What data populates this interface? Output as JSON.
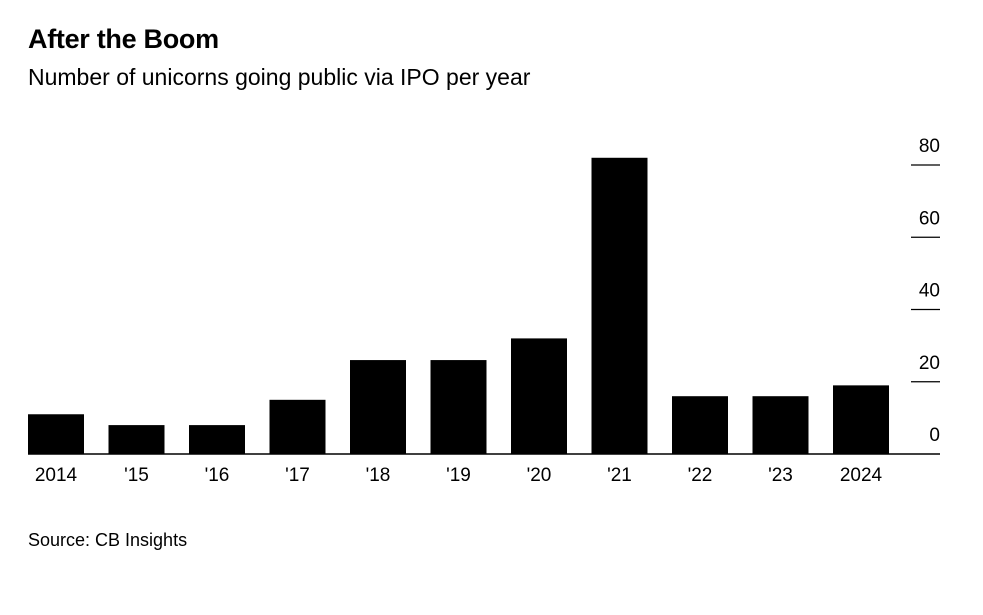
{
  "header": {
    "title": "After the Boom",
    "subtitle": "Number of unicorns going public via IPO per year"
  },
  "footer": {
    "source": "Source: CB Insights"
  },
  "chart_data": {
    "type": "bar",
    "title": "After the Boom",
    "subtitle": "Number of unicorns going public via IPO per year",
    "xlabel": "",
    "ylabel": "",
    "categories": [
      "2014",
      "'15",
      "'16",
      "'17",
      "'18",
      "'19",
      "'20",
      "'21",
      "'22",
      "'23",
      "2024"
    ],
    "values": [
      11,
      8,
      8,
      15,
      26,
      26,
      32,
      82,
      16,
      16,
      19
    ],
    "ylim": [
      0,
      80
    ],
    "yticks": [
      0,
      20,
      40,
      60,
      80
    ],
    "ytick_labels": [
      "0",
      "20",
      "40",
      "60",
      "80"
    ],
    "y_axis_position": "right",
    "grid": false,
    "legend": null,
    "bar_color": "#000000",
    "source": "Source: CB Insights"
  }
}
